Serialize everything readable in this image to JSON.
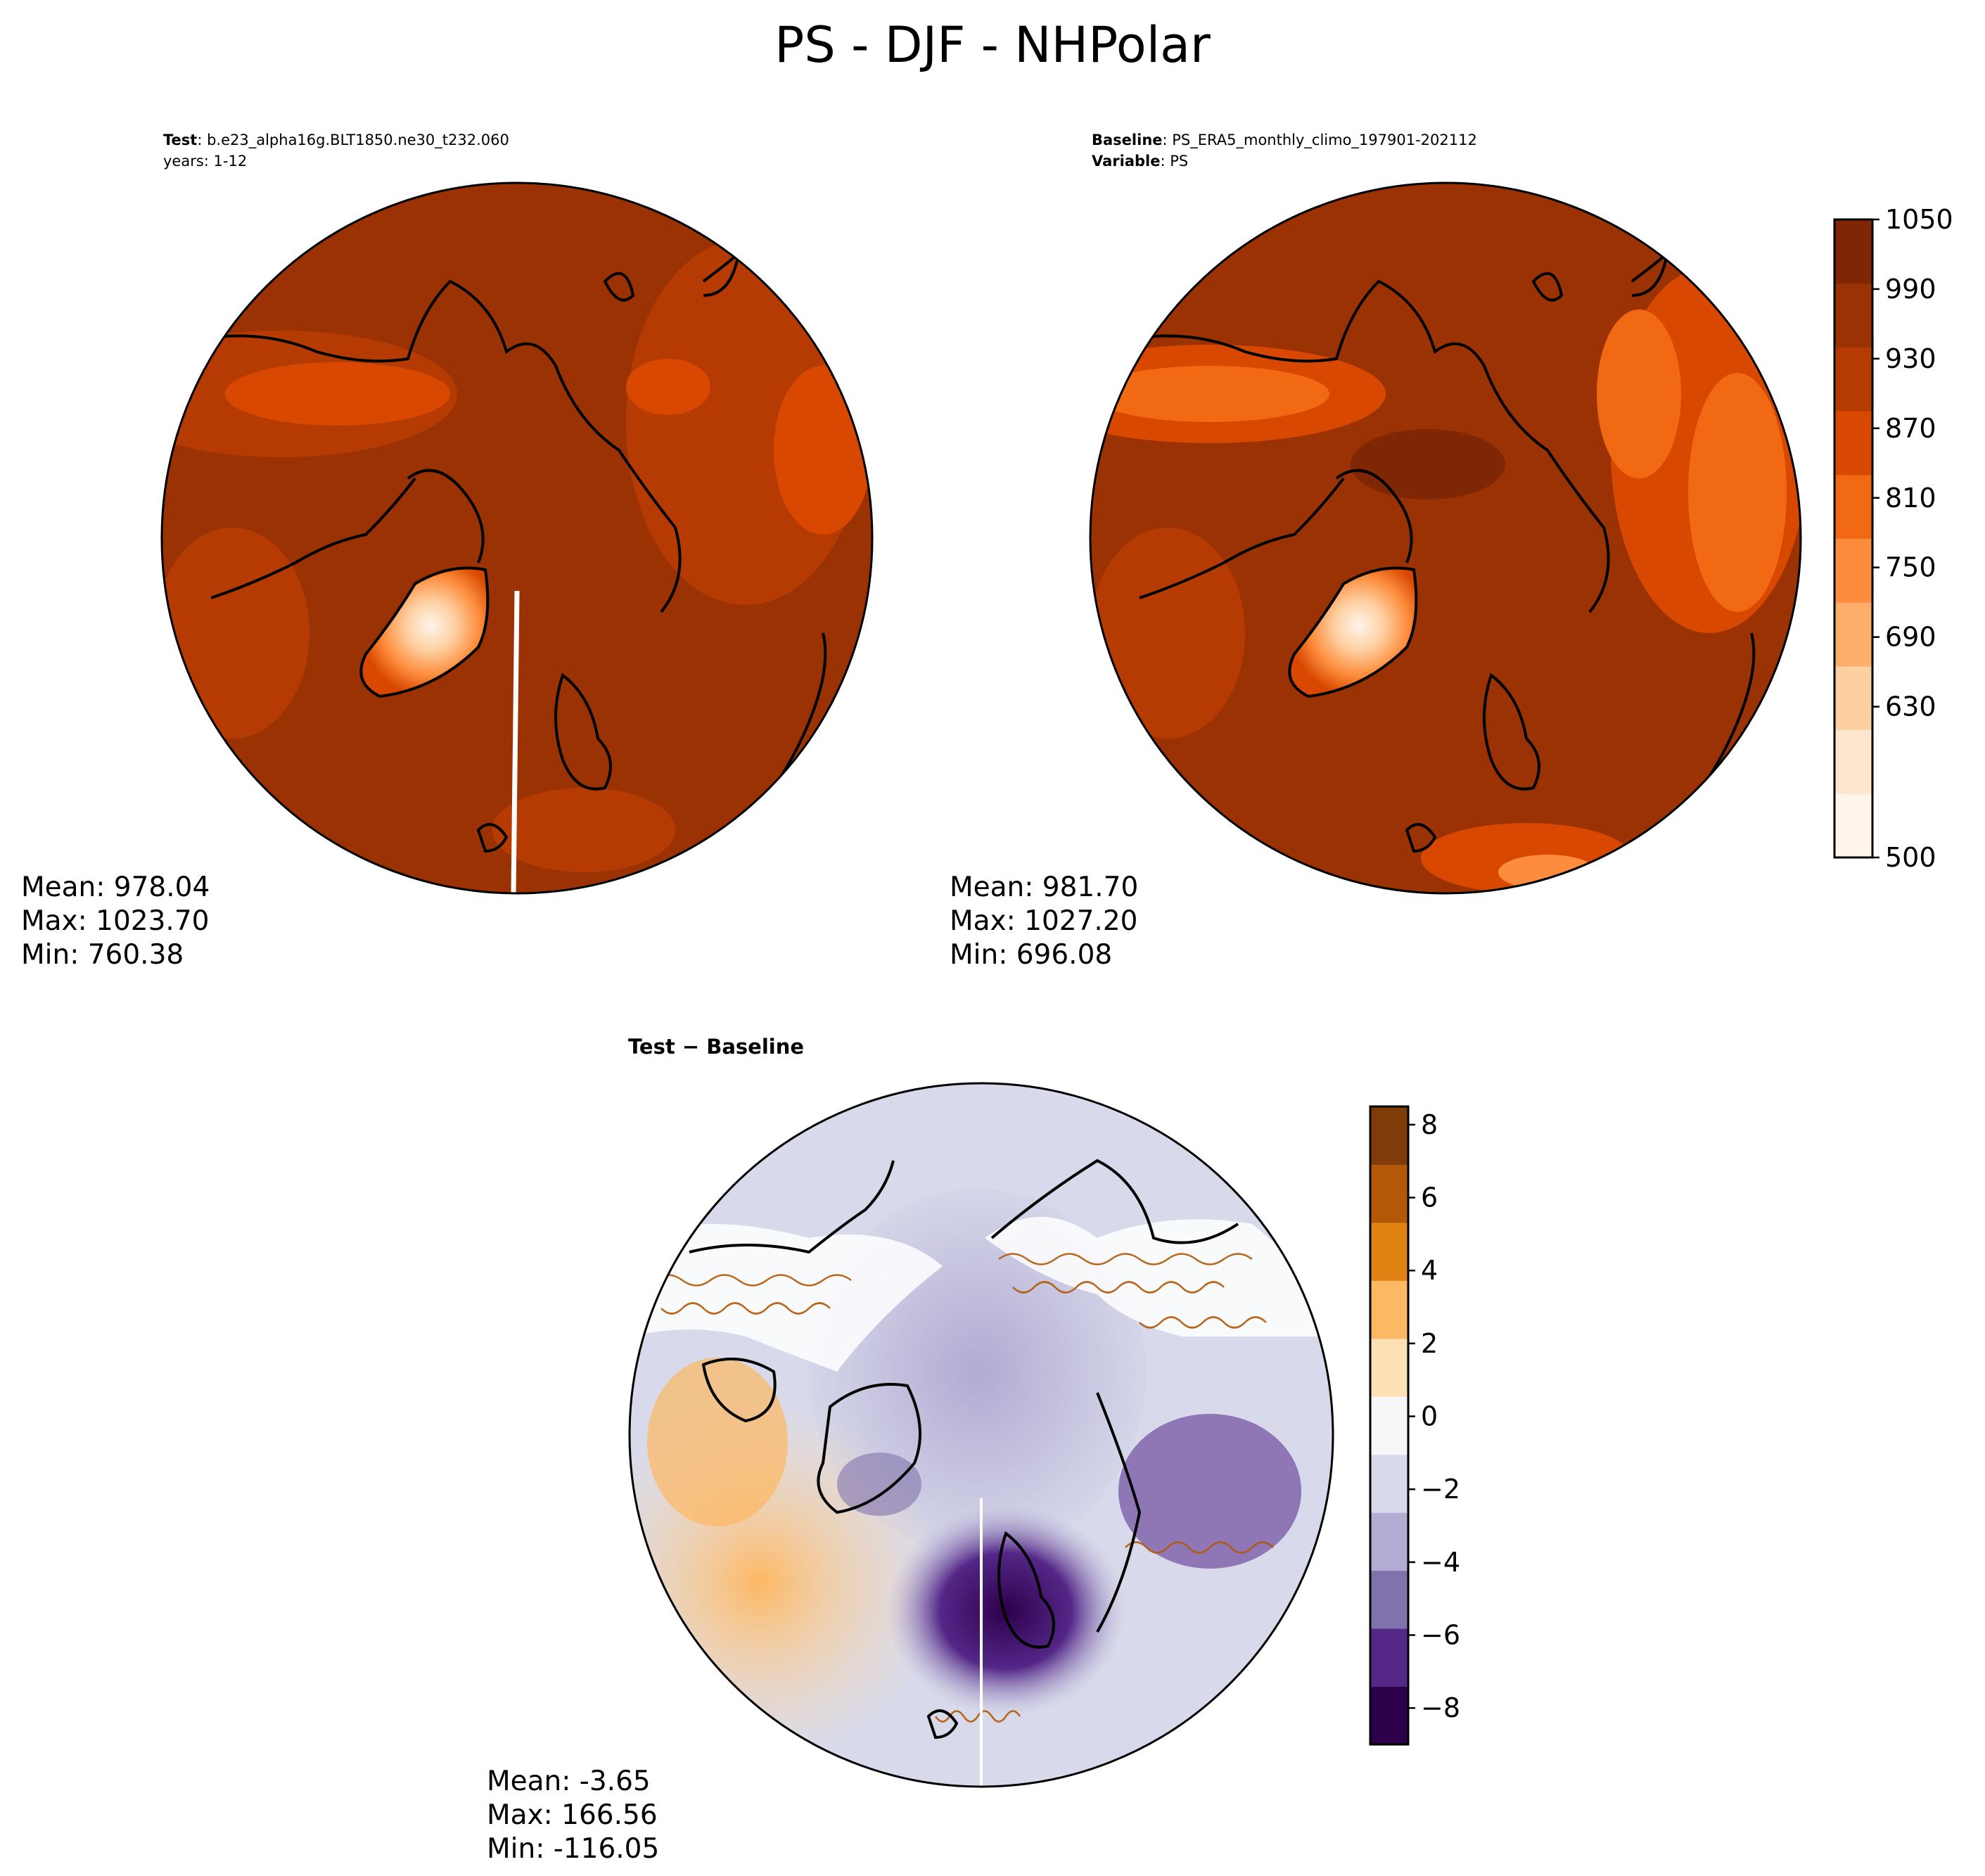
{
  "title": "PS - DJF - NHPolar",
  "panels": [
    {
      "id": "test",
      "header_line1_label": "Test",
      "header_line1_value": ": b.e23_alpha16g.BLT1850.ne30_t232.060",
      "header_line2_value": "years: 1-12",
      "stats": {
        "mean": "Mean: 978.04",
        "max": "Max: 1023.70",
        "min": "Min: 760.38"
      }
    },
    {
      "id": "baseline",
      "header_line1_label": "Baseline",
      "header_line1_value": ": PS_ERA5_monthly_climo_197901-202112",
      "header_line2_label": "Variable",
      "header_line2_value": ": PS",
      "stats": {
        "mean": "Mean: 981.70",
        "max": "Max: 1027.20",
        "min": "Min: 696.08"
      }
    },
    {
      "id": "difference",
      "header_line1_label": "Test − Baseline",
      "stats": {
        "mean": "Mean: -3.65",
        "max": "Max: 166.56",
        "min": "Min: -116.05"
      }
    }
  ],
  "colorbars": {
    "ps": {
      "range": [
        500,
        1050
      ],
      "ticks": [
        "1050",
        "990",
        "930",
        "870",
        "810",
        "750",
        "690",
        "630",
        "500"
      ],
      "colors": [
        "#fff5eb",
        "#fee6ce",
        "#fdd0a2",
        "#fdae6b",
        "#fd8d3c",
        "#f16913",
        "#d94801",
        "#b63b03",
        "#9a3203",
        "#7f2704"
      ]
    },
    "diff": {
      "range": [
        -9,
        8.5
      ],
      "ticks": [
        "8",
        "6",
        "4",
        "2",
        "0",
        "−2",
        "−4",
        "−6",
        "−8"
      ],
      "colors": [
        "#2d004b",
        "#542788",
        "#8073ac",
        "#b2abd2",
        "#d8daeb",
        "#f7f7f7",
        "#fee0b6",
        "#fdb863",
        "#e08214",
        "#b35806",
        "#7f3b08"
      ]
    }
  }
}
